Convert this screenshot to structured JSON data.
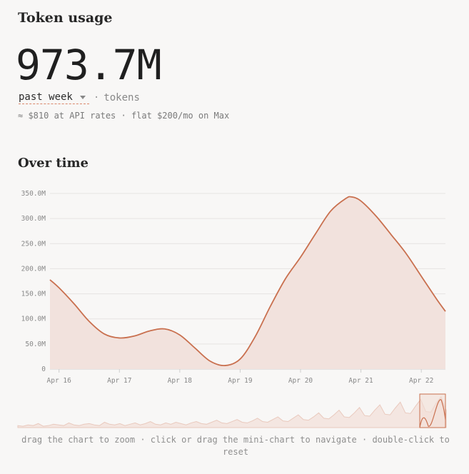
{
  "header": {
    "title": "Token usage"
  },
  "summary": {
    "total": "973.7M",
    "period_value": "past week",
    "separator": "·",
    "unit": "tokens",
    "cost_note": "≈ $810 at API rates · flat $200/mo on Max"
  },
  "section": {
    "title": "Over time"
  },
  "chart_data": {
    "type": "area",
    "title": "",
    "xlabel": "",
    "ylabel": "",
    "x_ticks": [
      "Apr 16",
      "Apr 17",
      "Apr 18",
      "Apr 19",
      "Apr 20",
      "Apr 21",
      "Apr 22"
    ],
    "y_ticks": [
      "0",
      "50.0M",
      "100.0M",
      "150.0M",
      "200.0M",
      "250.0M",
      "300.0M",
      "350.0M"
    ],
    "ylim": [
      0,
      350
    ],
    "y_unit": "M tokens",
    "x_range_days": [
      15.85,
      22.4
    ],
    "series": [
      {
        "x": [
          15.85,
          16.0,
          16.25,
          16.5,
          16.75,
          17.0,
          17.25,
          17.5,
          17.75,
          18.0,
          18.25,
          18.5,
          18.75,
          19.0,
          19.25,
          19.5,
          19.75,
          20.0,
          20.25,
          20.5,
          20.75,
          20.85,
          21.0,
          21.25,
          21.5,
          21.75,
          22.0,
          22.25,
          22.4
        ],
        "y": [
          178,
          162,
          130,
          95,
          70,
          62,
          66,
          76,
          80,
          68,
          42,
          16,
          7,
          20,
          65,
          125,
          180,
          223,
          270,
          315,
          340,
          343,
          335,
          305,
          268,
          230,
          185,
          140,
          115
        ]
      }
    ],
    "grid": true,
    "color": "#c9704f",
    "fill_color": "#f2e2dd"
  },
  "mini_chart": {
    "values": [
      3,
      2,
      4,
      3,
      6,
      2,
      3,
      5,
      4,
      3,
      7,
      4,
      3,
      5,
      6,
      4,
      3,
      8,
      5,
      4,
      6,
      3,
      5,
      7,
      4,
      6,
      9,
      5,
      4,
      7,
      5,
      8,
      6,
      4,
      7,
      9,
      6,
      5,
      8,
      11,
      7,
      6,
      9,
      12,
      8,
      7,
      10,
      14,
      9,
      8,
      12,
      16,
      10,
      9,
      14,
      19,
      12,
      11,
      16,
      22,
      14,
      13,
      19,
      26,
      16,
      15,
      22,
      30,
      18,
      17,
      26,
      34,
      20,
      19,
      29,
      38,
      22,
      21,
      32,
      42,
      24,
      23,
      36,
      46,
      26
    ],
    "selection_label": "past week"
  },
  "hint": "drag the chart to zoom · click or drag the mini-chart to navigate · double-click to reset"
}
